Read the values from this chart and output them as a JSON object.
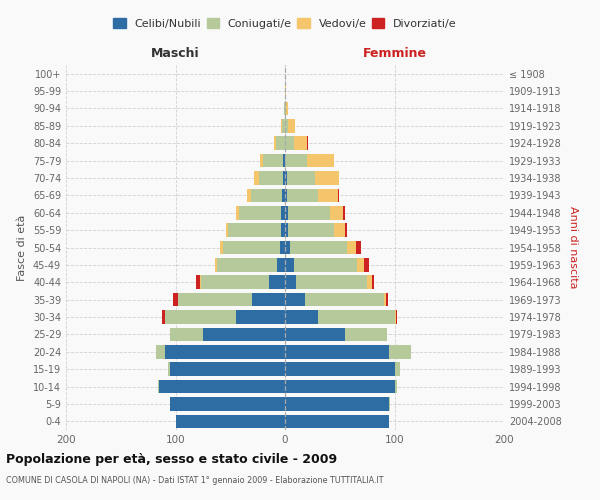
{
  "age_groups": [
    "0-4",
    "5-9",
    "10-14",
    "15-19",
    "20-24",
    "25-29",
    "30-34",
    "35-39",
    "40-44",
    "45-49",
    "50-54",
    "55-59",
    "60-64",
    "65-69",
    "70-74",
    "75-79",
    "80-84",
    "85-89",
    "90-94",
    "95-99",
    "100+"
  ],
  "birth_years": [
    "2004-2008",
    "1999-2003",
    "1994-1998",
    "1989-1993",
    "1984-1988",
    "1979-1983",
    "1974-1978",
    "1969-1973",
    "1964-1968",
    "1959-1963",
    "1954-1958",
    "1949-1953",
    "1944-1948",
    "1939-1943",
    "1934-1938",
    "1929-1933",
    "1924-1928",
    "1919-1923",
    "1914-1918",
    "1909-1913",
    "≤ 1908"
  ],
  "male_celibi": [
    100,
    105,
    115,
    105,
    110,
    75,
    45,
    30,
    15,
    7,
    5,
    4,
    4,
    3,
    2,
    2,
    0,
    0,
    0,
    0,
    0
  ],
  "male_coniugati": [
    0,
    0,
    1,
    2,
    8,
    30,
    65,
    68,
    62,
    55,
    52,
    48,
    38,
    28,
    22,
    18,
    8,
    3,
    1,
    0,
    0
  ],
  "male_vedovi": [
    0,
    0,
    0,
    0,
    0,
    0,
    0,
    0,
    1,
    2,
    2,
    2,
    3,
    4,
    4,
    3,
    2,
    1,
    0,
    0,
    0
  ],
  "male_divorziati": [
    0,
    0,
    0,
    0,
    0,
    0,
    2,
    4,
    3,
    0,
    0,
    0,
    0,
    0,
    0,
    0,
    0,
    0,
    0,
    0,
    0
  ],
  "female_nubili": [
    95,
    95,
    100,
    100,
    95,
    55,
    30,
    18,
    10,
    8,
    5,
    3,
    3,
    2,
    2,
    0,
    0,
    0,
    0,
    0,
    0
  ],
  "female_coniugate": [
    0,
    1,
    2,
    5,
    20,
    38,
    70,
    72,
    65,
    58,
    52,
    42,
    38,
    28,
    25,
    20,
    8,
    3,
    1,
    0,
    0
  ],
  "female_vedove": [
    0,
    0,
    0,
    0,
    0,
    0,
    1,
    2,
    4,
    6,
    8,
    10,
    12,
    18,
    22,
    25,
    12,
    6,
    2,
    1,
    0
  ],
  "female_divorziate": [
    0,
    0,
    0,
    0,
    0,
    0,
    1,
    2,
    2,
    5,
    4,
    2,
    2,
    1,
    0,
    0,
    1,
    0,
    0,
    0,
    0
  ],
  "colors": {
    "celibi": "#2e6da4",
    "coniugati": "#b5c99a",
    "vedovi": "#f5c56b",
    "divorziati": "#cc2222"
  },
  "xlim": 200,
  "title": "Popolazione per età, sesso e stato civile - 2009",
  "subtitle": "COMUNE DI CASOLA DI NAPOLI (NA) - Dati ISTAT 1° gennaio 2009 - Elaborazione TUTTITALIA.IT",
  "ylabel_left": "Fasce di età",
  "ylabel_right": "Anni di nascita",
  "xlabel_left": "Maschi",
  "xlabel_right": "Femmine",
  "legend_labels": [
    "Celibi/Nubili",
    "Coniugati/e",
    "Vedovi/e",
    "Divorziati/e"
  ],
  "bg_color": "#f9f9f9",
  "grid_color": "#cccccc"
}
